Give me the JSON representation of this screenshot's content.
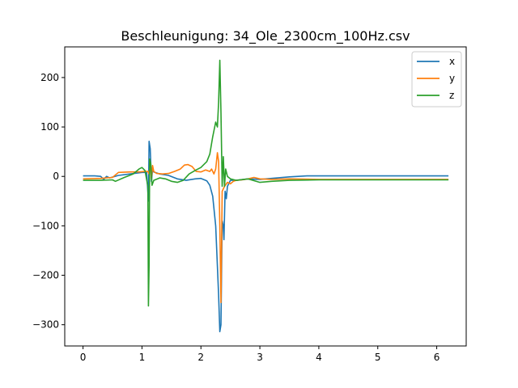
{
  "chart_data": {
    "type": "line",
    "title": "Beschleunigung: 34_Ole_2300cm_100Hz.csv",
    "xlabel": "",
    "ylabel": "",
    "xlim": [
      -0.31,
      6.5
    ],
    "ylim": [
      -343,
      262
    ],
    "xticks": [
      0,
      1,
      2,
      3,
      4,
      5,
      6
    ],
    "yticks": [
      -300,
      -200,
      -100,
      0,
      100,
      200
    ],
    "grid": false,
    "legend": "top-right",
    "series": [
      {
        "name": "x",
        "color": "#1f77b4",
        "points": [
          [
            0,
            1
          ],
          [
            0.2,
            1
          ],
          [
            0.3,
            0
          ],
          [
            0.35,
            -6
          ],
          [
            0.4,
            0
          ],
          [
            0.45,
            -3
          ],
          [
            0.6,
            2
          ],
          [
            0.8,
            5
          ],
          [
            1.0,
            8
          ],
          [
            1.08,
            8
          ],
          [
            1.11,
            -50
          ],
          [
            1.12,
            71
          ],
          [
            1.14,
            56
          ],
          [
            1.16,
            -10
          ],
          [
            1.18,
            13
          ],
          [
            1.2,
            9
          ],
          [
            1.3,
            5
          ],
          [
            1.45,
            2
          ],
          [
            1.6,
            -5
          ],
          [
            1.75,
            -8
          ],
          [
            1.9,
            -5
          ],
          [
            2.0,
            -4
          ],
          [
            2.1,
            -9
          ],
          [
            2.15,
            -18
          ],
          [
            2.2,
            -40
          ],
          [
            2.25,
            -100
          ],
          [
            2.3,
            -240
          ],
          [
            2.32,
            -314
          ],
          [
            2.34,
            -300
          ],
          [
            2.36,
            -90
          ],
          [
            2.38,
            -100
          ],
          [
            2.39,
            -128
          ],
          [
            2.41,
            -30
          ],
          [
            2.43,
            -45
          ],
          [
            2.45,
            -20
          ],
          [
            2.5,
            -8
          ],
          [
            2.6,
            -8
          ],
          [
            2.8,
            -5
          ],
          [
            3.0,
            -6
          ],
          [
            3.2,
            -4
          ],
          [
            3.5,
            -1
          ],
          [
            3.8,
            1
          ],
          [
            4.2,
            1
          ],
          [
            5.0,
            1
          ],
          [
            6.2,
            1
          ]
        ]
      },
      {
        "name": "y",
        "color": "#ff7f0e",
        "points": [
          [
            0,
            -5
          ],
          [
            0.3,
            -4
          ],
          [
            0.5,
            -2
          ],
          [
            0.6,
            8
          ],
          [
            0.8,
            9
          ],
          [
            0.95,
            9
          ],
          [
            1.05,
            10
          ],
          [
            1.1,
            10
          ],
          [
            1.12,
            5
          ],
          [
            1.14,
            26
          ],
          [
            1.16,
            -5
          ],
          [
            1.18,
            22
          ],
          [
            1.2,
            10
          ],
          [
            1.25,
            6
          ],
          [
            1.35,
            5
          ],
          [
            1.45,
            6
          ],
          [
            1.55,
            10
          ],
          [
            1.65,
            15
          ],
          [
            1.72,
            23
          ],
          [
            1.78,
            24
          ],
          [
            1.85,
            20
          ],
          [
            1.92,
            10
          ],
          [
            2.0,
            9
          ],
          [
            2.08,
            13
          ],
          [
            2.15,
            10
          ],
          [
            2.18,
            15
          ],
          [
            2.22,
            5
          ],
          [
            2.25,
            15
          ],
          [
            2.28,
            48
          ],
          [
            2.3,
            30
          ],
          [
            2.32,
            -100
          ],
          [
            2.34,
            -255
          ],
          [
            2.36,
            -30
          ],
          [
            2.4,
            -20
          ],
          [
            2.45,
            -12
          ],
          [
            2.5,
            -15
          ],
          [
            2.55,
            -10
          ],
          [
            2.6,
            -8
          ],
          [
            2.7,
            -7
          ],
          [
            2.8,
            -5
          ],
          [
            2.9,
            -2
          ],
          [
            3.0,
            -5
          ],
          [
            3.2,
            -6
          ],
          [
            3.5,
            -5
          ],
          [
            4.0,
            -6
          ],
          [
            5.0,
            -6
          ],
          [
            6.2,
            -6
          ]
        ]
      },
      {
        "name": "z",
        "color": "#2ca02c",
        "points": [
          [
            0,
            -8
          ],
          [
            0.3,
            -8
          ],
          [
            0.5,
            -7
          ],
          [
            0.55,
            -10
          ],
          [
            0.7,
            -2
          ],
          [
            0.85,
            5
          ],
          [
            0.95,
            15
          ],
          [
            1.0,
            18
          ],
          [
            1.05,
            12
          ],
          [
            1.1,
            -20
          ],
          [
            1.11,
            -262
          ],
          [
            1.12,
            -180
          ],
          [
            1.13,
            35
          ],
          [
            1.15,
            25
          ],
          [
            1.17,
            -18
          ],
          [
            1.2,
            -8
          ],
          [
            1.3,
            -3
          ],
          [
            1.4,
            -5
          ],
          [
            1.5,
            -10
          ],
          [
            1.6,
            -12
          ],
          [
            1.7,
            -8
          ],
          [
            1.8,
            5
          ],
          [
            1.9,
            12
          ],
          [
            2.0,
            18
          ],
          [
            2.1,
            30
          ],
          [
            2.15,
            45
          ],
          [
            2.2,
            80
          ],
          [
            2.25,
            110
          ],
          [
            2.28,
            100
          ],
          [
            2.3,
            150
          ],
          [
            2.32,
            235
          ],
          [
            2.34,
            130
          ],
          [
            2.36,
            -20
          ],
          [
            2.38,
            40
          ],
          [
            2.4,
            -20
          ],
          [
            2.42,
            15
          ],
          [
            2.45,
            0
          ],
          [
            2.5,
            -5
          ],
          [
            2.6,
            -8
          ],
          [
            2.8,
            -5
          ],
          [
            3.0,
            -12
          ],
          [
            3.2,
            -10
          ],
          [
            3.5,
            -8
          ],
          [
            4.0,
            -7
          ],
          [
            5.0,
            -7
          ],
          [
            6.2,
            -7
          ]
        ]
      }
    ]
  }
}
